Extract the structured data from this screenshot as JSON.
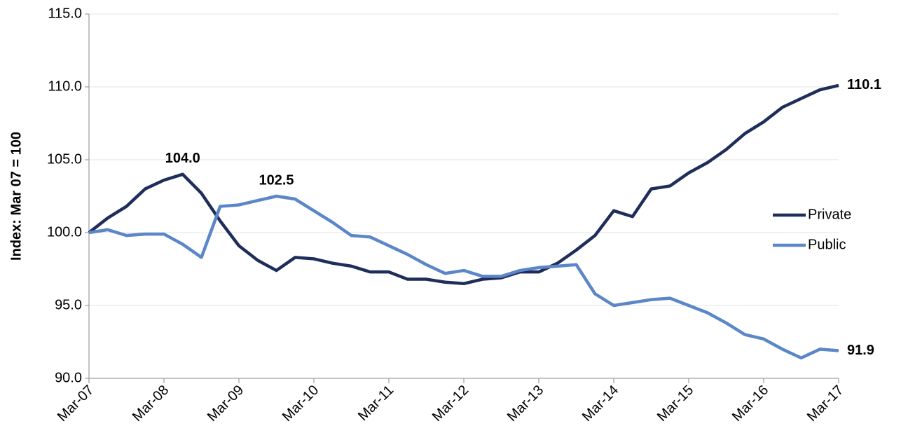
{
  "chart_data": {
    "type": "line",
    "y_label": "Index: Mar 07 = 100",
    "categories": [
      "Mar-07",
      null,
      null,
      null,
      "Mar-08",
      null,
      null,
      null,
      "Mar-09",
      null,
      null,
      null,
      "Mar-10",
      null,
      null,
      null,
      "Mar-11",
      null,
      null,
      null,
      "Mar-12",
      null,
      null,
      null,
      "Mar-13",
      null,
      null,
      null,
      "Mar-14",
      null,
      null,
      null,
      "Mar-15",
      null,
      null,
      null,
      "Mar-16",
      null,
      null,
      null,
      "Mar-17"
    ],
    "series": [
      {
        "name": "Private",
        "color": "#1f2d5a",
        "values": [
          100.0,
          101.0,
          101.8,
          103.0,
          103.6,
          104.0,
          102.7,
          100.8,
          99.1,
          98.1,
          97.4,
          98.3,
          98.2,
          97.9,
          97.7,
          97.3,
          97.3,
          96.8,
          96.8,
          96.6,
          96.5,
          96.8,
          96.9,
          97.3,
          97.3,
          97.9,
          98.8,
          99.8,
          101.5,
          101.1,
          103.0,
          103.2,
          104.1,
          104.8,
          105.7,
          106.8,
          107.6,
          108.6,
          109.2,
          109.8,
          110.1
        ],
        "value_labels": [
          null,
          null,
          null,
          null,
          null,
          "104.0",
          null,
          null,
          null,
          null,
          null,
          null,
          null,
          null,
          null,
          null,
          null,
          null,
          null,
          null,
          null,
          null,
          null,
          null,
          null,
          null,
          null,
          null,
          null,
          null,
          null,
          null,
          null,
          null,
          null,
          null,
          null,
          null,
          null,
          null,
          "110.1"
        ]
      },
      {
        "name": "Public",
        "color": "#5b86c8",
        "values": [
          100.0,
          100.2,
          99.8,
          99.9,
          99.9,
          99.2,
          98.3,
          101.8,
          101.9,
          102.2,
          102.5,
          102.3,
          101.5,
          100.7,
          99.8,
          99.7,
          99.1,
          98.5,
          97.8,
          97.2,
          97.4,
          97.0,
          97.0,
          97.4,
          97.6,
          97.7,
          97.8,
          95.8,
          95.0,
          95.2,
          95.4,
          95.5,
          95.0,
          94.5,
          93.8,
          93.0,
          92.7,
          92.0,
          91.4,
          92.0,
          91.9
        ],
        "value_labels": [
          null,
          null,
          null,
          null,
          null,
          null,
          null,
          null,
          null,
          null,
          "102.5",
          null,
          null,
          null,
          null,
          null,
          null,
          null,
          null,
          null,
          null,
          null,
          null,
          null,
          null,
          null,
          null,
          null,
          null,
          null,
          null,
          null,
          null,
          null,
          null,
          null,
          null,
          null,
          null,
          null,
          "91.9"
        ]
      }
    ],
    "ylim": [
      90,
      115
    ],
    "yticks": [
      {
        "value": 90,
        "label": "90.0"
      },
      {
        "value": 95,
        "label": "95.0"
      },
      {
        "value": 100,
        "label": "100.0"
      },
      {
        "value": 105,
        "label": "105.0"
      },
      {
        "value": 110,
        "label": "110.0"
      },
      {
        "value": 115,
        "label": "115.0"
      }
    ],
    "grid": true,
    "legend": "right"
  }
}
